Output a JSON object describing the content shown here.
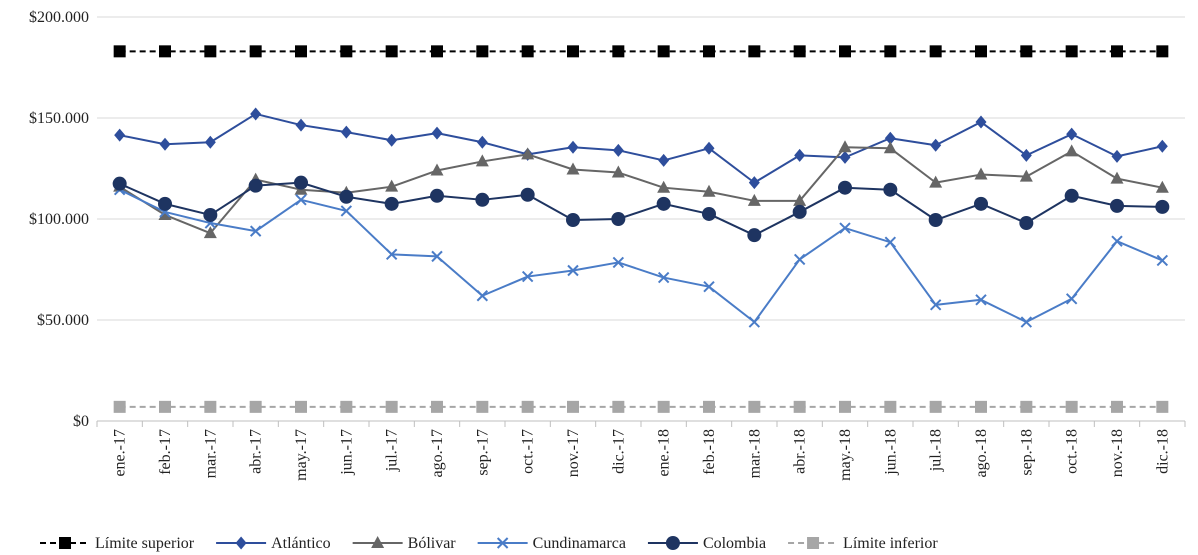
{
  "chart_data": {
    "type": "line",
    "title": "",
    "xlabel": "",
    "ylabel": "",
    "ylim": [
      0,
      200000
    ],
    "y_ticks": [
      {
        "value": 0,
        "label": "$0"
      },
      {
        "value": 50000,
        "label": "$50.000"
      },
      {
        "value": 100000,
        "label": "$100.000"
      },
      {
        "value": 150000,
        "label": "$150.000"
      },
      {
        "value": 200000,
        "label": "$200.000"
      }
    ],
    "grid": true,
    "legend_position": "bottom",
    "categories": [
      "ene.-17",
      "feb.-17",
      "mar.-17",
      "abr.-17",
      "may.-17",
      "jun.-17",
      "jul.-17",
      "ago.-17",
      "sep.-17",
      "oct.-17",
      "nov.-17",
      "dic.-17",
      "ene.-18",
      "feb.-18",
      "mar.-18",
      "abr.-18",
      "may.-18",
      "jun.-18",
      "jul.-18",
      "ago.-18",
      "sep.-18",
      "oct.-18",
      "nov.-18",
      "dic.-18"
    ],
    "series": [
      {
        "name": "Límite superior",
        "color": "#000000",
        "marker": "square",
        "dash": true,
        "values": [
          183000,
          183000,
          183000,
          183000,
          183000,
          183000,
          183000,
          183000,
          183000,
          183000,
          183000,
          183000,
          183000,
          183000,
          183000,
          183000,
          183000,
          183000,
          183000,
          183000,
          183000,
          183000,
          183000,
          183000
        ]
      },
      {
        "name": "Atlántico",
        "color": "#2E4E9C",
        "marker": "diamond",
        "dash": false,
        "values": [
          141500,
          137000,
          138000,
          152000,
          146500,
          143000,
          139000,
          142500,
          138000,
          132000,
          135500,
          134000,
          129000,
          135000,
          118000,
          131500,
          130500,
          140000,
          136500,
          148000,
          131500,
          142000,
          131000,
          136000
        ]
      },
      {
        "name": "Bólivar",
        "color": "#666666",
        "marker": "triangle",
        "dash": false,
        "values": [
          116000,
          102000,
          93000,
          119500,
          114500,
          113000,
          116000,
          124000,
          128500,
          132000,
          124500,
          123000,
          115500,
          113500,
          109000,
          109000,
          135500,
          135000,
          118000,
          122000,
          121000,
          133500,
          120000,
          115500
        ]
      },
      {
        "name": "Cundinamarca",
        "color": "#4A7CC7",
        "marker": "x",
        "dash": false,
        "values": [
          114500,
          103500,
          98000,
          94000,
          109500,
          104000,
          82500,
          81500,
          62000,
          71500,
          74500,
          78500,
          71000,
          66500,
          49000,
          80000,
          95500,
          88500,
          57500,
          60000,
          49000,
          60500,
          89000,
          79500
        ]
      },
      {
        "name": "Colombia",
        "color": "#1E3461",
        "marker": "circle",
        "dash": false,
        "values": [
          117500,
          107500,
          102000,
          116500,
          118000,
          111000,
          107500,
          111500,
          109500,
          112000,
          99500,
          100000,
          107500,
          102500,
          92000,
          103500,
          115500,
          114500,
          99500,
          107500,
          98000,
          111500,
          106500,
          106000
        ]
      },
      {
        "name": "Límite inferior",
        "color": "#A6A6A6",
        "marker": "square",
        "dash": true,
        "values": [
          7000,
          7000,
          7000,
          7000,
          7000,
          7000,
          7000,
          7000,
          7000,
          7000,
          7000,
          7000,
          7000,
          7000,
          7000,
          7000,
          7000,
          7000,
          7000,
          7000,
          7000,
          7000,
          7000,
          7000
        ]
      }
    ]
  }
}
